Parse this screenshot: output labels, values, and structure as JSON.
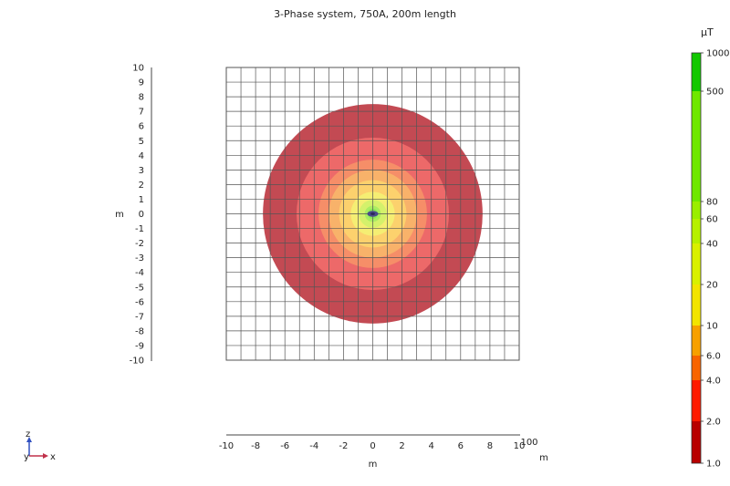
{
  "chart_data": {
    "type": "heatmap",
    "title": "3-Phase system, 750A, 200m length",
    "xlabel": "m",
    "ylabel": "m",
    "x_ticks": [
      "-10",
      "-8",
      "-6",
      "-4",
      "-2",
      "0",
      "2",
      "4",
      "6",
      "8",
      "10"
    ],
    "y_ticks": [
      "10",
      "9",
      "8",
      "7",
      "6",
      "5",
      "4",
      "3",
      "2",
      "1",
      "0",
      "-1",
      "-2",
      "-3",
      "-4",
      "-5",
      "-6",
      "-7",
      "-8",
      "-9",
      "-10"
    ],
    "xlim": [
      -10,
      10
    ],
    "ylim": [
      -10,
      10
    ],
    "grid": true,
    "lower_axis": {
      "tick_labels": [
        "-10",
        "-8",
        "-6",
        "-4",
        "-2",
        "0",
        "2",
        "4",
        "6",
        "8",
        "10"
      ],
      "end_label": "100",
      "unit": "m"
    },
    "contours": [
      {
        "level_uT": 1.0,
        "radius_m": 7.5,
        "color": "#c0404a"
      },
      {
        "level_uT": 2.0,
        "radius_m": 5.2,
        "color": "#ef6a6a"
      },
      {
        "level_uT": 4.0,
        "radius_m": 3.7,
        "color": "#f79068"
      },
      {
        "level_uT": 6.0,
        "radius_m": 3.0,
        "color": "#f8b46a"
      },
      {
        "level_uT": 10,
        "radius_m": 2.3,
        "color": "#fcd36e"
      },
      {
        "level_uT": 20,
        "radius_m": 1.5,
        "color": "#f4ef74"
      },
      {
        "level_uT": 40,
        "radius_m": 0.95,
        "color": "#d2f06a"
      },
      {
        "level_uT": 60,
        "radius_m": 0.55,
        "color": "#a8ec62"
      },
      {
        "level_uT": 80,
        "radius_m": 0.35,
        "color": "#86e858"
      }
    ],
    "colorbar": {
      "unit": "µT",
      "labels": [
        "1000",
        "500",
        "80",
        "60",
        "40",
        "20",
        "10",
        "6.0",
        "4.0",
        "2.0",
        "1.0"
      ],
      "segments": [
        {
          "from": "1.0",
          "to": "2.0",
          "color": "#b80000"
        },
        {
          "from": "2.0",
          "to": "4.0",
          "color": "#ff1a00"
        },
        {
          "from": "4.0",
          "to": "6.0",
          "color": "#f86400"
        },
        {
          "from": "6.0",
          "to": "10",
          "color": "#f7a000"
        },
        {
          "from": "10",
          "to": "20",
          "color": "#f3e400"
        },
        {
          "from": "20",
          "to": "40",
          "color": "#d9f000"
        },
        {
          "from": "40",
          "to": "60",
          "color": "#b6f000"
        },
        {
          "from": "60",
          "to": "80",
          "color": "#9aee00"
        },
        {
          "from": "80",
          "to": "500",
          "color": "#6fe800"
        },
        {
          "from": "500",
          "to": "1000",
          "color": "#12c800"
        }
      ]
    }
  },
  "triad": {
    "z_label": "z",
    "y_label": "y",
    "x_label": "x"
  },
  "colors": {
    "grid": "#555555",
    "axis": "#444444",
    "cable": "#4a4a8a",
    "triad_axis": "#c0304a"
  }
}
